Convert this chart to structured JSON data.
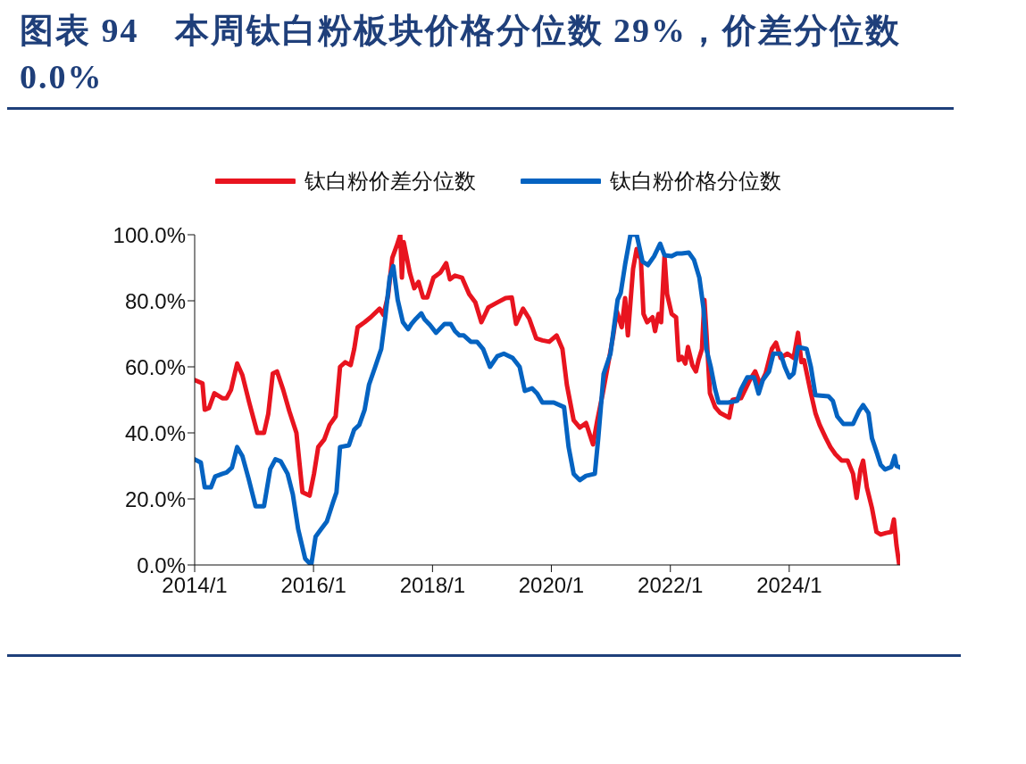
{
  "chart_data": {
    "type": "line",
    "title": "图表 94　本周钛白粉板块价格分位数 29%，价差分位数 0.0%",
    "xlim": [
      "2014-01-01",
      "2025-11-12"
    ],
    "xticks": [
      {
        "value": "2014-01-01",
        "label": "2014/1"
      },
      {
        "value": "2016-01-01",
        "label": "2016/1"
      },
      {
        "value": "2018-01-01",
        "label": "2018/1"
      },
      {
        "value": "2020-01-01",
        "label": "2020/1"
      },
      {
        "value": "2022-01-01",
        "label": "2022/1"
      },
      {
        "value": "2024-01-01",
        "label": "2024/1"
      }
    ],
    "ylim": [
      0,
      100
    ],
    "yticks": [
      {
        "value": 0,
        "label": "0.0%"
      },
      {
        "value": 20,
        "label": "20.0%"
      },
      {
        "value": 40,
        "label": "40.0%"
      },
      {
        "value": 60,
        "label": "60.0%"
      },
      {
        "value": 80,
        "label": "80.0%"
      },
      {
        "value": 100,
        "label": "100.0%"
      }
    ],
    "legend": "top",
    "marker": "none",
    "line_style": "solid",
    "series": [
      {
        "name": "钛白粉价差分位数",
        "color": "#e8141f",
        "x": [
          "2014-01-01",
          "2014-02-18",
          "2014-03-04",
          "2014-03-30",
          "2014-05-02",
          "2014-06-20",
          "2014-07-16",
          "2014-08-12",
          "2014-09-19",
          "2014-10-21",
          "2014-12-03",
          "2015-01-21",
          "2015-03-03",
          "2015-03-29",
          "2015-04-26",
          "2015-05-22",
          "2015-06-29",
          "2015-08-06",
          "2015-09-18",
          "2015-10-25",
          "2015-12-08",
          "2016-01-04",
          "2016-01-30",
          "2016-03-07",
          "2016-04-09",
          "2016-05-16",
          "2016-06-12",
          "2016-07-14",
          "2016-08-16",
          "2016-09-07",
          "2016-09-28",
          "2016-11-10",
          "2016-12-17",
          "2017-02-10",
          "2017-03-06",
          "2017-04-03",
          "2017-04-29",
          "2017-05-25",
          "2017-06-17",
          "2017-06-27",
          "2017-07-08",
          "2017-08-15",
          "2017-09-11",
          "2017-10-07",
          "2017-11-04",
          "2017-11-30",
          "2018-01-07",
          "2018-02-19",
          "2018-03-26",
          "2018-04-18",
          "2018-05-19",
          "2018-07-01",
          "2018-08-14",
          "2018-09-21",
          "2018-10-28",
          "2018-12-10",
          "2019-02-03",
          "2019-03-26",
          "2019-05-03",
          "2019-05-29",
          "2019-07-11",
          "2019-08-18",
          "2019-09-30",
          "2019-11-07",
          "2019-12-19",
          "2020-02-02",
          "2020-03-09",
          "2020-04-05",
          "2020-05-17",
          "2020-06-24",
          "2020-08-01",
          "2020-09-13",
          "2020-10-10",
          "2020-11-12",
          "2020-12-19",
          "2021-01-15",
          "2021-02-06",
          "2021-03-08",
          "2021-03-29",
          "2021-04-15",
          "2021-05-17",
          "2021-06-08",
          "2021-07-04",
          "2021-07-20",
          "2021-08-11",
          "2021-09-13",
          "2021-09-29",
          "2021-10-20",
          "2021-11-05",
          "2021-11-26",
          "2021-12-12",
          "2022-01-09",
          "2022-02-05",
          "2022-02-21",
          "2022-03-12",
          "2022-04-03",
          "2022-04-19",
          "2022-05-16",
          "2022-06-07",
          "2022-06-23",
          "2022-07-14",
          "2022-07-29",
          "2022-08-10",
          "2022-09-01",
          "2022-10-03",
          "2022-11-04",
          "2022-12-28",
          "2023-01-18",
          "2023-03-11",
          "2023-05-04",
          "2023-06-06",
          "2023-07-07",
          "2023-08-09",
          "2023-09-16",
          "2023-10-12",
          "2023-11-09",
          "2023-12-21",
          "2024-01-28",
          "2024-02-24",
          "2024-03-16",
          "2024-04-01",
          "2024-05-13",
          "2024-06-10",
          "2024-07-06",
          "2024-08-13",
          "2024-09-10",
          "2024-10-11",
          "2024-11-18",
          "2024-12-25",
          "2025-01-27",
          "2025-02-18",
          "2025-03-14",
          "2025-03-30",
          "2025-04-22",
          "2025-05-23",
          "2025-06-20",
          "2025-07-16",
          "2025-08-18",
          "2025-09-19",
          "2025-10-05",
          "2025-10-21",
          "2025-11-07"
        ],
        "values": [
          56,
          55,
          47,
          47.5,
          52,
          50.5,
          50.5,
          53,
          61,
          57.5,
          49,
          40,
          40,
          45.7,
          58,
          58.6,
          53,
          46.5,
          40,
          22,
          21,
          27.6,
          35.7,
          38,
          42.4,
          45,
          60,
          61.4,
          60.5,
          65.4,
          72,
          73.5,
          75,
          77.6,
          75.7,
          81.6,
          93,
          96.5,
          100,
          87,
          97.8,
          88.4,
          83.8,
          85.7,
          81,
          81,
          87,
          88.6,
          91.4,
          86.5,
          87.6,
          87,
          82,
          79.5,
          73.5,
          78,
          79.5,
          80.8,
          81,
          73,
          77.6,
          74.6,
          68.6,
          68,
          67.6,
          69.5,
          65.4,
          54.6,
          43.8,
          41.6,
          43,
          36.5,
          44,
          52,
          62,
          69.5,
          76.8,
          72,
          80.8,
          69.5,
          89.7,
          95.7,
          92.4,
          76,
          73.5,
          75,
          70.8,
          76,
          73.5,
          93.5,
          82,
          76,
          75,
          62,
          63,
          61,
          66,
          60.5,
          58.6,
          62,
          65.4,
          80.3,
          70.8,
          52,
          47.8,
          46,
          44.6,
          50,
          50.5,
          56,
          58.6,
          54.6,
          58,
          65.4,
          67.3,
          62.7,
          64,
          62.7,
          70.3,
          61.4,
          62,
          52,
          46,
          42.4,
          38.4,
          35.7,
          33.5,
          31.6,
          31.6,
          27.6,
          20.3,
          29,
          31.6,
          23.5,
          17.3,
          10,
          9.2,
          9.7,
          10,
          13.8,
          5.9,
          0
        ]
      },
      {
        "name": "钛白粉价格分位数",
        "color": "#0563c1",
        "x": [
          "2014-01-01",
          "2014-02-08",
          "2014-03-04",
          "2014-04-11",
          "2014-05-07",
          "2014-06-20",
          "2014-07-16",
          "2014-08-18",
          "2014-09-19",
          "2014-10-21",
          "2014-11-28",
          "2015-01-10",
          "2015-03-03",
          "2015-04-10",
          "2015-05-12",
          "2015-06-13",
          "2015-07-26",
          "2015-08-27",
          "2015-09-29",
          "2015-11-11",
          "2015-12-18",
          "2016-01-14",
          "2016-02-16",
          "2016-03-23",
          "2016-04-30",
          "2016-05-21",
          "2016-06-12",
          "2016-08-05",
          "2016-09-07",
          "2016-10-08",
          "2016-11-10",
          "2016-12-07",
          "2017-01-14",
          "2017-02-20",
          "2017-03-17",
          "2017-04-13",
          "2017-05-05",
          "2017-06-01",
          "2017-07-03",
          "2017-08-04",
          "2017-08-25",
          "2017-09-22",
          "2017-10-24",
          "2017-11-14",
          "2017-12-16",
          "2018-01-23",
          "2018-03-16",
          "2018-04-23",
          "2018-05-19",
          "2018-06-16",
          "2018-07-12",
          "2018-08-24",
          "2018-10-01",
          "2018-11-08",
          "2018-12-20",
          "2019-02-03",
          "2019-03-15",
          "2019-05-08",
          "2019-06-20",
          "2019-07-22",
          "2019-09-04",
          "2019-10-06",
          "2019-11-07",
          "2020-01-16",
          "2020-03-19",
          "2020-04-16",
          "2020-05-17",
          "2020-06-24",
          "2020-08-01",
          "2020-09-24",
          "2020-10-15",
          "2020-11-17",
          "2020-12-29",
          "2021-02-11",
          "2021-03-02",
          "2021-03-29",
          "2021-05-01",
          "2021-06-08",
          "2021-07-14",
          "2021-08-16",
          "2021-09-23",
          "2021-10-30",
          "2021-11-26",
          "2022-01-09",
          "2022-02-10",
          "2022-03-12",
          "2022-04-24",
          "2022-05-26",
          "2022-06-28",
          "2022-07-24",
          "2022-08-10",
          "2022-09-06",
          "2022-10-03",
          "2022-10-24",
          "2022-12-22",
          "2023-02-15",
          "2023-03-11",
          "2023-04-18",
          "2023-05-30",
          "2023-06-27",
          "2023-07-23",
          "2023-08-30",
          "2023-09-26",
          "2023-11-09",
          "2023-12-05",
          "2024-01-02",
          "2024-01-28",
          "2024-02-24",
          "2024-04-17",
          "2024-05-13",
          "2024-06-10",
          "2024-08-29",
          "2024-09-25",
          "2024-10-22",
          "2024-11-29",
          "2025-01-27",
          "2025-03-04",
          "2025-03-30",
          "2025-05-02",
          "2025-05-23",
          "2025-06-20",
          "2025-07-16",
          "2025-08-12",
          "2025-09-19",
          "2025-10-10",
          "2025-10-21",
          "2025-11-12"
        ],
        "values": [
          32,
          31,
          23.5,
          23.5,
          26.8,
          27.6,
          28,
          29.5,
          35.7,
          33,
          26.2,
          17.8,
          17.8,
          29,
          32,
          31.4,
          27.6,
          21.4,
          10.8,
          1.9,
          0,
          8.6,
          10.8,
          13.2,
          19,
          22,
          35.7,
          36.2,
          41,
          42.4,
          47,
          54.6,
          60,
          65.4,
          75,
          87,
          90.5,
          80.3,
          73.5,
          71.4,
          73,
          74.6,
          76.2,
          74.3,
          72.7,
          70.3,
          73,
          73,
          70.8,
          69.5,
          69.5,
          67.6,
          67.6,
          65.4,
          60,
          63.2,
          64,
          62.7,
          60,
          52.7,
          53.5,
          51.9,
          49.2,
          49.2,
          47.8,
          35.7,
          27.6,
          25.7,
          27,
          27.6,
          38.4,
          57.8,
          64,
          80.3,
          82.4,
          91,
          100,
          100,
          91.9,
          90.8,
          93.5,
          97.3,
          93.8,
          93.5,
          94.3,
          94.3,
          94.6,
          92.4,
          87,
          77.6,
          65.4,
          60,
          53.2,
          49.2,
          49.2,
          49.7,
          53.2,
          56.8,
          56.8,
          51.9,
          56,
          58.6,
          64,
          64,
          60,
          56.8,
          58,
          66,
          65.4,
          60,
          51.4,
          51.1,
          49.7,
          45,
          42.7,
          42.7,
          46.5,
          48.4,
          46,
          38.4,
          34.3,
          30.3,
          28.9,
          29.7,
          33,
          30,
          29.5
        ]
      }
    ]
  }
}
